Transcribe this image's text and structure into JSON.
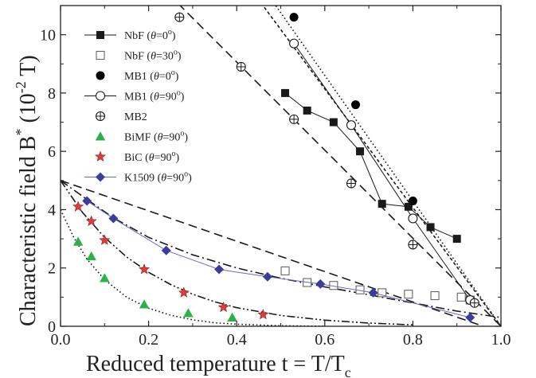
{
  "chart_data": {
    "type": "scatter",
    "title": "",
    "xlabel": "Reduced temperature t = T/T",
    "xlabel_sub": "c",
    "ylabel": "Characteristic field B",
    "ylabel_sup": "*",
    "ylabel_unit": " (10",
    "ylabel_unit_sup": "-2",
    "ylabel_unit_end": " T)",
    "xlim": [
      0.0,
      1.0
    ],
    "ylim": [
      0,
      11
    ],
    "x_ticks": [
      0.0,
      0.2,
      0.4,
      0.6,
      0.8,
      1.0
    ],
    "x_tick_labels": [
      "0.0",
      "0.2",
      "0.4",
      "0.6",
      "0.8",
      "1.0"
    ],
    "y_ticks": [
      0,
      2,
      4,
      6,
      8,
      10
    ],
    "y_tick_labels": [
      "0",
      "2",
      "4",
      "6",
      "8",
      "10"
    ],
    "grid": false,
    "legend_position": "top-left",
    "series": [
      {
        "name": "NbF (θ=0°)",
        "label_main": "NbF (",
        "label_theta": "θ",
        "label_rest": "=0",
        "label_deg": "o",
        "label_end": ")",
        "marker": "square-filled",
        "color": "#1a1a1a",
        "connect": true,
        "line_style": "solid",
        "x": [
          0.51,
          0.56,
          0.62,
          0.68,
          0.73,
          0.79,
          0.84,
          0.9
        ],
        "y": [
          8.0,
          7.4,
          7.0,
          6.0,
          4.2,
          4.1,
          3.4,
          3.0
        ]
      },
      {
        "name": "NbF (θ=30°)",
        "label_main": "NbF (",
        "label_theta": "θ",
        "label_rest": "=30",
        "label_deg": "o",
        "label_end": ")",
        "marker": "square-open",
        "color": "#1a1a1a",
        "connect": false,
        "x": [
          0.51,
          0.56,
          0.62,
          0.68,
          0.73,
          0.79,
          0.85,
          0.91,
          0.93
        ],
        "y": [
          1.9,
          1.5,
          1.4,
          1.25,
          1.15,
          1.1,
          1.05,
          1.0,
          0.9
        ]
      },
      {
        "name": "MB1 (θ=0°)",
        "label_main": "MB1 (",
        "label_theta": "θ",
        "label_rest": "=0",
        "label_deg": "o",
        "label_end": ")",
        "marker": "circle-filled",
        "color": "#000000",
        "connect": false,
        "x": [
          0.53,
          0.67,
          0.8
        ],
        "y": [
          10.6,
          7.6,
          4.3
        ]
      },
      {
        "name": "MB1 (θ=90°)",
        "label_main": "MB1 (",
        "label_theta": "θ",
        "label_rest": "=90",
        "label_deg": "o",
        "label_end": ")",
        "marker": "circle-open",
        "color": "#1a1a1a",
        "connect": true,
        "line_style": "solid",
        "x": [
          0.53,
          0.66,
          0.8,
          0.93
        ],
        "y": [
          9.7,
          6.9,
          3.7,
          0.9
        ]
      },
      {
        "name": "MB2",
        "label_main": "MB2",
        "label_theta": "",
        "label_rest": "",
        "label_deg": "",
        "label_end": "",
        "marker": "circle-cross",
        "color": "#1a1a1a",
        "connect": false,
        "x": [
          0.27,
          0.41,
          0.53,
          0.66,
          0.8,
          0.94
        ],
        "y": [
          10.6,
          8.9,
          7.1,
          4.9,
          2.8,
          0.8
        ]
      },
      {
        "name": "BiMF (θ=90°)",
        "label_main": "BiMF (",
        "label_theta": "θ",
        "label_rest": "=90",
        "label_deg": "o",
        "label_end": ")",
        "marker": "triangle",
        "color": "#2ab24a",
        "connect": false,
        "x": [
          0.04,
          0.07,
          0.1,
          0.19,
          0.29,
          0.39
        ],
        "y": [
          2.9,
          2.4,
          1.65,
          0.75,
          0.45,
          0.3
        ]
      },
      {
        "name": "BiC (θ=90°)",
        "label_main": "BiC (",
        "label_theta": "θ",
        "label_rest": "=90",
        "label_deg": "o",
        "label_end": ")",
        "marker": "star",
        "color": "#e03a3a",
        "connect": false,
        "x": [
          0.04,
          0.07,
          0.1,
          0.19,
          0.28,
          0.37,
          0.46
        ],
        "y": [
          4.1,
          3.6,
          2.95,
          1.95,
          1.15,
          0.65,
          0.4
        ]
      },
      {
        "name": "K1509 (θ=90°)",
        "label_main": "K1509 (",
        "label_theta": "θ",
        "label_rest": "=90",
        "label_deg": "o",
        "label_end": ")",
        "marker": "diamond",
        "color": "#3c3c9c",
        "connect": true,
        "line_style": "solid",
        "line_color": "#6a6ab8",
        "x": [
          0.06,
          0.12,
          0.24,
          0.36,
          0.47,
          0.59,
          0.71,
          0.93
        ],
        "y": [
          4.3,
          3.7,
          2.6,
          1.95,
          1.7,
          1.45,
          1.15,
          0.3
        ]
      }
    ],
    "fit_lines": [
      {
        "style": "short-dash",
        "x": [
          0.44,
          1.0
        ],
        "y": [
          11.4,
          0.0
        ]
      },
      {
        "style": "dash",
        "x": [
          0.245,
          1.0
        ],
        "y": [
          11.4,
          0.0
        ]
      },
      {
        "style": "dot",
        "x": [
          0.47,
          1.0
        ],
        "y": [
          11.4,
          0.0
        ]
      },
      {
        "style": "dash",
        "x": [
          0.0,
          0.96
        ],
        "y": [
          5.0,
          0.0
        ]
      },
      {
        "style": "dash-dot",
        "x": [
          0.0,
          0.06,
          0.12,
          0.2,
          0.3,
          0.4,
          0.5,
          0.6,
          0.7,
          0.8,
          0.9,
          1.0
        ],
        "y": [
          5.0,
          4.35,
          3.72,
          3.05,
          2.45,
          2.0,
          1.65,
          1.35,
          1.08,
          0.8,
          0.52,
          0.3
        ]
      },
      {
        "style": "dash-dot-dot",
        "x": [
          0.0,
          0.05,
          0.1,
          0.15,
          0.2,
          0.25,
          0.3,
          0.35,
          0.4,
          0.5,
          0.6,
          0.7,
          0.8
        ],
        "y": [
          5.0,
          3.9,
          3.05,
          2.38,
          1.85,
          1.43,
          1.1,
          0.84,
          0.64,
          0.37,
          0.21,
          0.11,
          0.05
        ]
      },
      {
        "style": "dot",
        "x": [
          0.0,
          0.03,
          0.06,
          0.1,
          0.15,
          0.2,
          0.25,
          0.3,
          0.35,
          0.4,
          0.5,
          0.6
        ],
        "y": [
          4.0,
          3.05,
          2.3,
          1.6,
          1.0,
          0.62,
          0.38,
          0.22,
          0.12,
          0.07,
          0.02,
          0.0
        ]
      }
    ]
  }
}
